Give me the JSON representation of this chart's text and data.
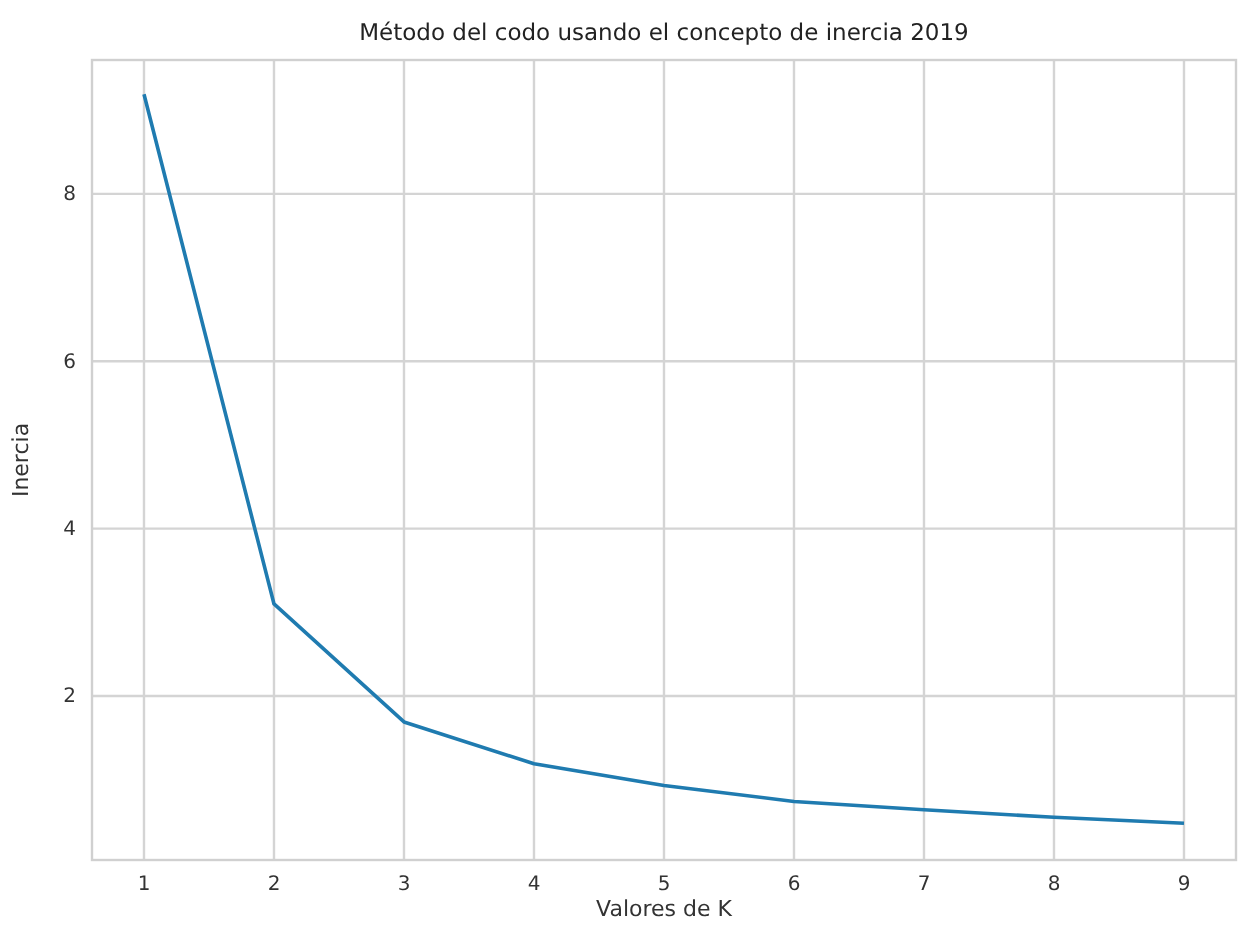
{
  "chart_data": {
    "type": "line",
    "title": "Método del codo usando el concepto de inercia 2019",
    "xlabel": "Valores de K",
    "ylabel": "Inercia",
    "x": [
      1,
      2,
      3,
      4,
      5,
      6,
      7,
      8,
      9
    ],
    "series": [
      {
        "color": "#1f7bb0",
        "values": [
          9.19,
          3.1,
          1.69,
          1.19,
          0.93,
          0.74,
          0.64,
          0.55,
          0.48
        ]
      }
    ],
    "xlim": [
      0.6,
      9.4
    ],
    "xticks": [
      1,
      2,
      3,
      4,
      5,
      6,
      7,
      8,
      9
    ],
    "ylim": [
      0.04,
      9.6
    ],
    "yticks": [
      2,
      4,
      6,
      8
    ],
    "grid": true,
    "marker": "none",
    "line_style": "solid"
  }
}
